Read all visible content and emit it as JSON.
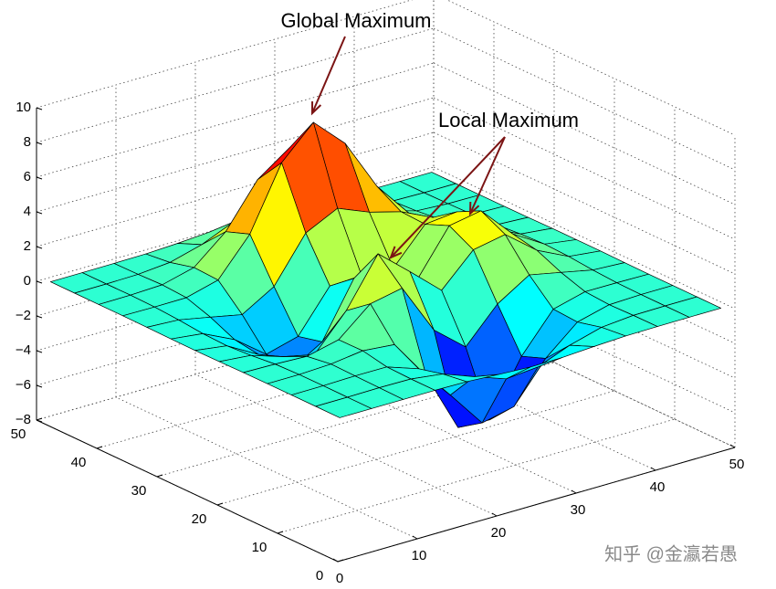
{
  "chart_data": {
    "type": "surface",
    "annotations": [
      "Global Maximum",
      "Local Maximum"
    ],
    "watermark": "知乎 @金瀛若愚",
    "x": [
      1,
      5,
      9,
      13,
      17,
      21,
      25,
      29,
      33,
      37,
      41,
      45,
      49
    ],
    "y": [
      1,
      5,
      9,
      13,
      17,
      21,
      25,
      29,
      33,
      37,
      41,
      45,
      49
    ],
    "z": [
      [
        0,
        0,
        0,
        0,
        -0.03,
        -0.14,
        -0.24,
        -0.22,
        -0.11,
        -0.03,
        -0.01,
        0,
        0
      ],
      [
        0,
        0,
        0.02,
        0,
        -0.24,
        -0.92,
        -1.57,
        -1.41,
        -0.69,
        -0.18,
        -0.02,
        0,
        0
      ],
      [
        0,
        0.01,
        0.05,
        0.04,
        -0.59,
        -2.63,
        -4.76,
        -4.35,
        -2.1,
        -0.53,
        -0.06,
        0,
        0
      ],
      [
        0,
        0,
        0.08,
        0.32,
        0.15,
        -2.18,
        -5.68,
        -5.76,
        -2.63,
        -0.44,
        0.04,
        0.03,
        0
      ],
      [
        -0.01,
        -0.05,
        -0.13,
        0.3,
        1.85,
        2.22,
        -0.72,
        -2.22,
        -0.27,
        0.88,
        0.5,
        0.11,
        0.01
      ],
      [
        -0.03,
        -0.2,
        -0.8,
        -1.21,
        0.8,
        3.55,
        2.0,
        0.39,
        2.2,
        2.56,
        1.12,
        0.24,
        0.03
      ],
      [
        -0.04,
        -0.3,
        -1.33,
        -2.77,
        -1.65,
        1.48,
        0.98,
        0.38,
        2.94,
        3.27,
        1.41,
        0.3,
        0.03
      ],
      [
        -0.03,
        -0.25,
        -1.12,
        -2.49,
        -1.99,
        0.39,
        0.46,
        0.37,
        2.37,
        2.56,
        1.1,
        0.23,
        0.03
      ],
      [
        -0.01,
        -0.11,
        -0.48,
        -0.86,
        0.23,
        2.79,
        3.69,
        2.94,
        2.44,
        1.58,
        0.58,
        0.11,
        0.01
      ],
      [
        0,
        -0.02,
        -0.01,
        0.48,
        2.6,
        6.19,
        7.99,
        6.25,
        3.25,
        1.19,
        0.29,
        0.05,
        0
      ],
      [
        0,
        0.01,
        0.08,
        0.55,
        2.09,
        4.56,
        5.86,
        4.56,
        2.21,
        0.68,
        0.13,
        0.02,
        0
      ],
      [
        0,
        0,
        0.03,
        0.19,
        0.69,
        1.47,
        1.88,
        1.47,
        0.7,
        0.2,
        0.04,
        0,
        0
      ],
      [
        0,
        0,
        0.01,
        0.03,
        0.11,
        0.23,
        0.3,
        0.23,
        0.11,
        0.03,
        0.01,
        0,
        0
      ]
    ],
    "xlim": [
      0,
      50
    ],
    "ylim": [
      0,
      50
    ],
    "zlim": [
      -8,
      10
    ],
    "xticks": [
      0,
      10,
      20,
      30,
      40,
      50
    ],
    "yticks": [
      0,
      10,
      20,
      30,
      40,
      50
    ],
    "zticks": [
      {
        "value": -8,
        "label": "−8"
      },
      {
        "value": -6,
        "label": "−6"
      },
      {
        "value": -4,
        "label": "−4"
      },
      {
        "value": -2,
        "label": "−2"
      },
      0,
      2,
      4,
      6,
      8,
      10
    ],
    "colormap": "jet",
    "grid": true,
    "annotation_color": "#7b1414"
  }
}
